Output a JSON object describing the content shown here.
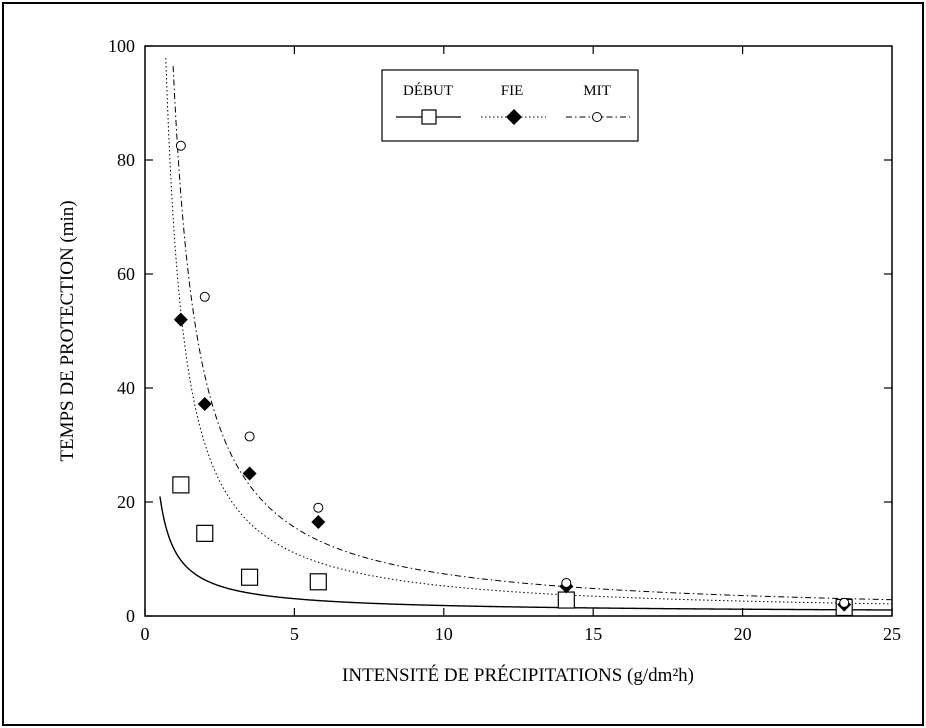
{
  "chart_data": {
    "type": "scatter",
    "title": "",
    "xlabel": "INTENSITÉ DE PRÉCIPITATIONS (g/dm²h)",
    "ylabel": "TEMPS DE PROTECTION (min)",
    "xlim": [
      0,
      25
    ],
    "ylim": [
      0,
      100
    ],
    "xticks": [
      0,
      5,
      10,
      15,
      20,
      25
    ],
    "yticks": [
      0,
      20,
      40,
      60,
      80,
      100
    ],
    "xtick_labels": [
      "0",
      "5",
      "10",
      "15",
      "20",
      "25"
    ],
    "ytick_labels": [
      "0",
      "20",
      "40",
      "60",
      "80",
      "100"
    ],
    "grid": false,
    "legend_position": "top-center",
    "series": [
      {
        "name": "DÉBUT",
        "marker": "open-square",
        "line": "solid",
        "x": [
          1.2,
          2.0,
          3.5,
          5.8,
          14.1,
          23.4
        ],
        "y": [
          23,
          14.5,
          6.8,
          6.0,
          2.8,
          1.5
        ],
        "fit": {
          "a": 11.0,
          "b": 0.9,
          "c": 0.45
        }
      },
      {
        "name": "FIE",
        "marker": "filled-diamond",
        "line": "dotted",
        "x": [
          1.2,
          2.0,
          3.5,
          5.8,
          14.1,
          23.4
        ],
        "y": [
          52,
          37.2,
          25,
          16.5,
          5.2,
          2.0
        ],
        "fit": {
          "a": 65.0,
          "b": 1.12,
          "c": 0.35
        }
      },
      {
        "name": "MIT",
        "marker": "open-circle",
        "line": "dash-dot",
        "x": [
          1.2,
          2.0,
          3.5,
          5.8,
          14.1,
          23.4
        ],
        "y": [
          82.5,
          56,
          31.5,
          19,
          5.8,
          2.3
        ],
        "fit": {
          "a": 90.0,
          "b": 1.1,
          "c": 0.25
        }
      }
    ]
  }
}
